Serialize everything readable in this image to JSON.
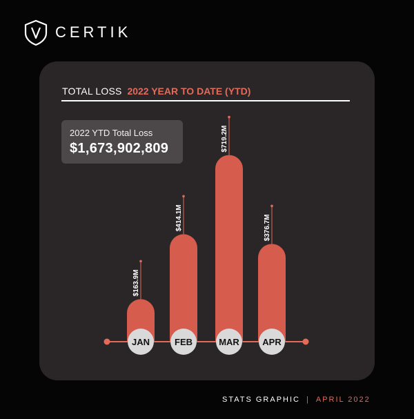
{
  "brand": {
    "name": "CERTIK",
    "logo_icon": "certik-shield-icon"
  },
  "header": {
    "title": "TOTAL LOSS",
    "subtitle": "2022 YEAR TO DATE (YTD)"
  },
  "summary": {
    "label": "2022 YTD Total Loss",
    "value": "$1,673,902,809"
  },
  "footer": {
    "left": "STATS GRAPHIC",
    "separator": "|",
    "right": "APRIL 2022"
  },
  "colors": {
    "background": "#050505",
    "card": "#2a2627",
    "accent": "#e46a5a",
    "bar": "#d65c4d",
    "summary_box": "#4c4849",
    "month_circle": "#d9d9d9"
  },
  "chart_data": {
    "type": "bar",
    "title": "",
    "xlabel": "",
    "ylabel": "",
    "categories": [
      "JAN",
      "FEB",
      "MAR",
      "APR"
    ],
    "values": [
      163.9,
      414.1,
      719.2,
      376.7
    ],
    "value_labels": [
      "$163.9M",
      "$414.1M",
      "$719.2M",
      "$376.7M"
    ],
    "unit": "million USD",
    "ylim": [
      0,
      800
    ],
    "grid": false,
    "legend": "none"
  }
}
